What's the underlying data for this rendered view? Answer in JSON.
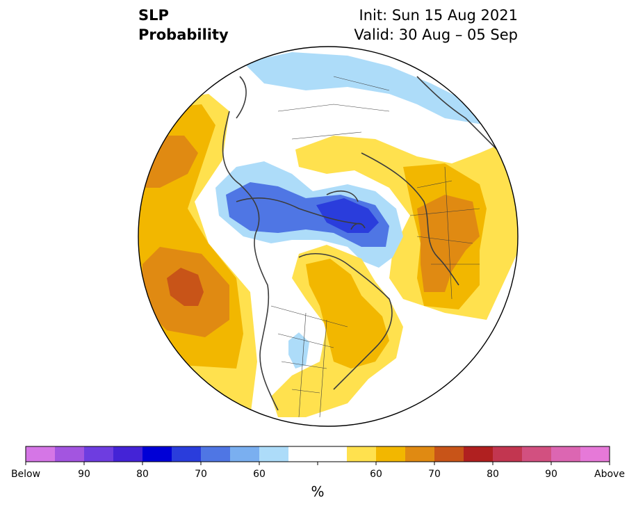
{
  "title": {
    "variable": "SLP",
    "metric": "Probability",
    "init": "Init: Sun 15 Aug 2021",
    "valid": "Valid: 30 Aug – 05 Sep"
  },
  "colorbar": {
    "unit": "%",
    "colors": [
      "#d576e6",
      "#a355e0",
      "#6e3de0",
      "#4423d6",
      "#0000d6",
      "#2a3ddc",
      "#4f76e4",
      "#7aaff0",
      "#addcf9",
      "#ffffff",
      "#ffffff",
      "#ffe14e",
      "#f2b700",
      "#e08a12",
      "#c85418",
      "#b02020",
      "#c23650",
      "#d25080",
      "#dc66b2",
      "#e679d8"
    ],
    "tick_labels": [
      "Below",
      "90",
      "80",
      "70",
      "60",
      "60",
      "70",
      "80",
      "90",
      "Above"
    ]
  },
  "map_legend_colors": {
    "light_blue": "#addcf9",
    "mid_blue": "#4f76e4",
    "blue": "#2a3ddc",
    "yellow": "#ffe14e",
    "gold": "#f2b700",
    "orange": "#e08a12",
    "dark_orange": "#c85418",
    "coast": "#3c3c3c"
  }
}
